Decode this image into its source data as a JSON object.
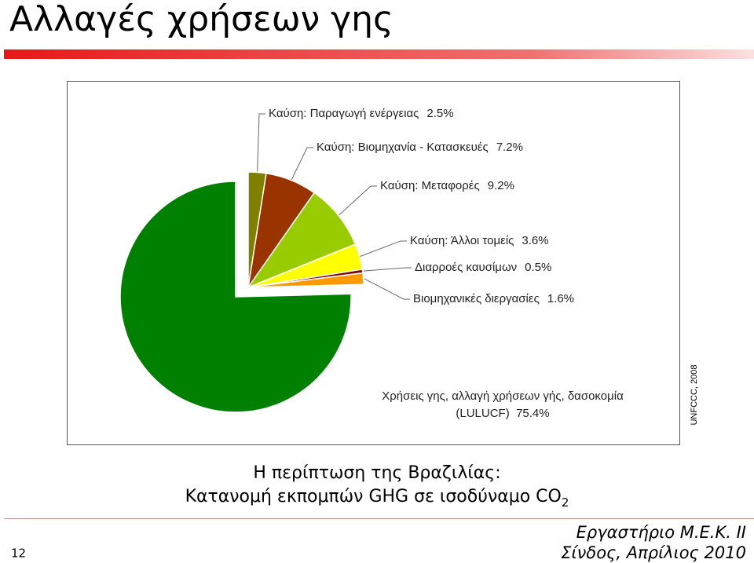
{
  "title": "Αλλαγές χρήσεων γης",
  "chart_data": {
    "type": "pie",
    "categories": [
      "Καύση: Παραγωγή ενέργειας",
      "Καύση: Βιομηχανία - Κατασκευές",
      "Καύση: Μεταφορές",
      "Καύση: Άλλοι τομείς",
      "Διαρροές καυσίμων",
      "Βιομηχανικές διεργασίες",
      "Χρήσεις γης, αλλαγή χρήσεων γής, δασοκομία (LULUCF)"
    ],
    "values": [
      2.5,
      7.2,
      9.2,
      3.6,
      0.5,
      1.6,
      75.4
    ],
    "value_labels": [
      "2.5%",
      "7.2%",
      "9.2%",
      "3.6%",
      "0.5%",
      "1.6%",
      "75.4%"
    ],
    "colors": [
      "#808000",
      "#993300",
      "#99cc00",
      "#ffff00",
      "#800000",
      "#ff9900",
      "#008000"
    ],
    "source": "UNFCCC, 2008"
  },
  "caption": {
    "line1": "Η περίπτωση της Βραζιλίας:",
    "line2": "Κατανομή εκπομπών GHG σε ισοδύναμο CO",
    "subscript": "2"
  },
  "footer": {
    "lab": "Εργαστήριο Μ.Ε.Κ. ΙΙ",
    "place_date": "Σίνδος, Απρίλιος 2010"
  },
  "page_number": "12"
}
